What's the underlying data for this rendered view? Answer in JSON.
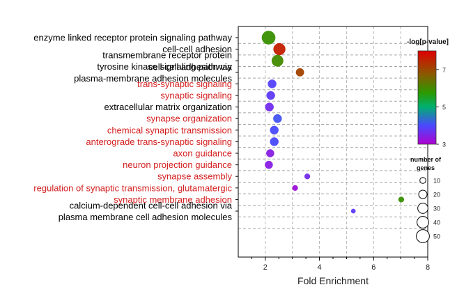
{
  "chart_data": {
    "type": "scatter",
    "xlabel": "Fold Enrichment",
    "xlim": [
      1,
      8
    ],
    "xticks": [
      "2",
      "4",
      "6",
      "8"
    ],
    "grid": true,
    "terms": [
      {
        "lines": [
          "enzyme linked receptor protein signaling pathway"
        ],
        "color": "#000000"
      },
      {
        "lines": [
          "cell-cell adhesion"
        ],
        "color": "#000000"
      },
      {
        "lines": [
          "transmembrane receptor protein",
          "tyrosine kinase signaling pathway"
        ],
        "color": "#000000"
      },
      {
        "lines": [
          "cell-cell adhesion via",
          "plasma-membrane adhesion molecules"
        ],
        "color": "#000000"
      },
      {
        "lines": [
          "trans-synaptic signaling"
        ],
        "color": "#d42020"
      },
      {
        "lines": [
          "synaptic signaling"
        ],
        "color": "#d42020"
      },
      {
        "lines": [
          "extracellular matrix organization"
        ],
        "color": "#000000"
      },
      {
        "lines": [
          "synapse organization"
        ],
        "color": "#d42020"
      },
      {
        "lines": [
          "chemical synaptic transmission"
        ],
        "color": "#d42020"
      },
      {
        "lines": [
          "anterograde trans-synaptic signaling"
        ],
        "color": "#d42020"
      },
      {
        "lines": [
          "axon guidance"
        ],
        "color": "#d42020"
      },
      {
        "lines": [
          "neuron projection guidance"
        ],
        "color": "#d42020"
      },
      {
        "lines": [
          "synapse assembly"
        ],
        "color": "#d42020"
      },
      {
        "lines": [
          "regulation of synaptic transmission, glutamatergic"
        ],
        "color": "#d42020"
      },
      {
        "lines": [
          "synaptic membrane adhesion"
        ],
        "color": "#d42020"
      },
      {
        "lines": [
          "calcium-dependent cell-cell adhesion via",
          "plasma membrane cell adhesion molecules"
        ],
        "color": "#000000"
      }
    ],
    "points": [
      {
        "x": 2.12,
        "genes": 52,
        "neglogp": 5.9
      },
      {
        "x": 2.52,
        "genes": 40,
        "neglogp": 7.6
      },
      {
        "x": 2.45,
        "genes": 38,
        "neglogp": 6.0
      },
      {
        "x": 3.28,
        "genes": 18,
        "neglogp": 7.1
      },
      {
        "x": 2.25,
        "genes": 20,
        "neglogp": 3.9
      },
      {
        "x": 2.2,
        "genes": 20,
        "neglogp": 3.8
      },
      {
        "x": 2.15,
        "genes": 20,
        "neglogp": 3.6
      },
      {
        "x": 2.45,
        "genes": 20,
        "neglogp": 4.1
      },
      {
        "x": 2.33,
        "genes": 20,
        "neglogp": 4.0
      },
      {
        "x": 2.33,
        "genes": 20,
        "neglogp": 4.0
      },
      {
        "x": 2.18,
        "genes": 17,
        "neglogp": 3.4
      },
      {
        "x": 2.13,
        "genes": 17,
        "neglogp": 3.4
      },
      {
        "x": 3.55,
        "genes": 8,
        "neglogp": 3.6
      },
      {
        "x": 3.1,
        "genes": 8,
        "neglogp": 3.2
      },
      {
        "x": 7.02,
        "genes": 8,
        "neglogp": 5.9
      },
      {
        "x": 5.25,
        "genes": 5,
        "neglogp": 3.8
      }
    ],
    "colorbar": {
      "title": "-log[p-value]",
      "min": 3,
      "max": 8,
      "ticks": [
        "7",
        "5",
        "3"
      ]
    },
    "size_legend": {
      "title_lines": [
        "number of",
        "genes"
      ],
      "values": [
        "10",
        "20",
        "30",
        "40",
        "50"
      ]
    }
  }
}
